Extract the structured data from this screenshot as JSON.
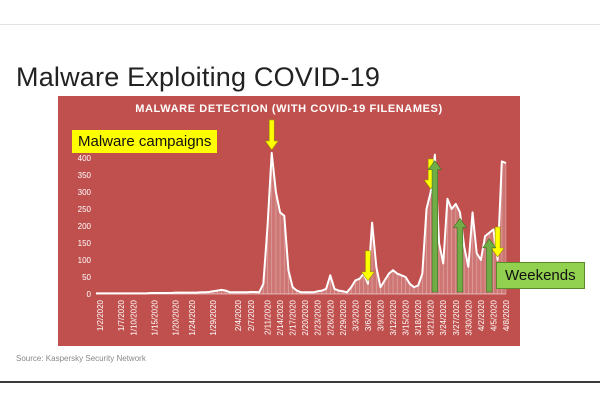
{
  "slide": {
    "title": "Malware Exploiting COVID-19",
    "source": "Source: Kaspersky Security Network"
  },
  "callouts": {
    "campaigns": "Malware campaigns",
    "weekends": "Weekends"
  },
  "colors": {
    "panel": "#c0504d",
    "line": "#ffffff",
    "campaign_arrow": "#ffff00",
    "weekend_arrow": "#70ad47",
    "campaign_callout": "#ffff00",
    "weekend_callout": "#92d050"
  },
  "chart_data": {
    "type": "area",
    "title": "MALWARE DETECTION (WITH COVID-19 FILENAMES)",
    "xlabel": "",
    "ylabel": "",
    "ylim": [
      0,
      400
    ],
    "yticks": [
      0,
      50,
      100,
      150,
      200,
      250,
      300,
      350,
      400
    ],
    "grid": false,
    "x_tick_labels": [
      "1/2/2020",
      "1/7/2020",
      "1/10/2020",
      "1/15/2020",
      "1/20/2020",
      "1/24/2020",
      "1/29/2020",
      "2/4/2020",
      "2/7/2020",
      "2/11/2020",
      "2/14/2020",
      "2/17/2020",
      "2/20/2020",
      "2/23/2020",
      "2/26/2020",
      "2/29/2020",
      "3/3/2020",
      "3/6/2020",
      "3/9/2020",
      "3/12/2020",
      "3/15/2020",
      "3/18/2020",
      "3/21/2020",
      "3/24/2020",
      "3/27/2020",
      "3/30/2020",
      "4/2/2020",
      "4/5/2020",
      "4/8/2020"
    ],
    "x": [
      "1/1/2020",
      "1/2/2020",
      "1/3/2020",
      "1/4/2020",
      "1/5/2020",
      "1/6/2020",
      "1/7/2020",
      "1/8/2020",
      "1/9/2020",
      "1/10/2020",
      "1/11/2020",
      "1/12/2020",
      "1/13/2020",
      "1/14/2020",
      "1/15/2020",
      "1/16/2020",
      "1/17/2020",
      "1/18/2020",
      "1/19/2020",
      "1/20/2020",
      "1/21/2020",
      "1/22/2020",
      "1/23/2020",
      "1/24/2020",
      "1/25/2020",
      "1/26/2020",
      "1/27/2020",
      "1/28/2020",
      "1/29/2020",
      "1/30/2020",
      "1/31/2020",
      "2/1/2020",
      "2/2/2020",
      "2/3/2020",
      "2/4/2020",
      "2/5/2020",
      "2/6/2020",
      "2/7/2020",
      "2/8/2020",
      "2/9/2020",
      "2/10/2020",
      "2/11/2020",
      "2/12/2020",
      "2/13/2020",
      "2/14/2020",
      "2/15/2020",
      "2/16/2020",
      "2/17/2020",
      "2/18/2020",
      "2/19/2020",
      "2/20/2020",
      "2/21/2020",
      "2/22/2020",
      "2/23/2020",
      "2/24/2020",
      "2/25/2020",
      "2/26/2020",
      "2/27/2020",
      "2/28/2020",
      "2/29/2020",
      "3/1/2020",
      "3/2/2020",
      "3/3/2020",
      "3/4/2020",
      "3/5/2020",
      "3/6/2020",
      "3/7/2020",
      "3/8/2020",
      "3/9/2020",
      "3/10/2020",
      "3/11/2020",
      "3/12/2020",
      "3/13/2020",
      "3/14/2020",
      "3/15/2020",
      "3/16/2020",
      "3/17/2020",
      "3/18/2020",
      "3/19/2020",
      "3/20/2020",
      "3/21/2020",
      "3/22/2020",
      "3/23/2020",
      "3/24/2020",
      "3/25/2020",
      "3/26/2020",
      "3/27/2020",
      "3/28/2020",
      "3/29/2020",
      "3/30/2020",
      "3/31/2020",
      "4/1/2020",
      "4/2/2020",
      "4/3/2020",
      "4/4/2020",
      "4/5/2020",
      "4/6/2020",
      "4/7/2020",
      "4/8/2020"
    ],
    "values": [
      2,
      2,
      2,
      2,
      2,
      2,
      2,
      2,
      2,
      2,
      2,
      2,
      2,
      3,
      3,
      3,
      3,
      3,
      3,
      4,
      4,
      4,
      4,
      4,
      4,
      5,
      5,
      6,
      8,
      10,
      12,
      10,
      5,
      5,
      5,
      5,
      5,
      6,
      6,
      5,
      30,
      200,
      415,
      300,
      240,
      230,
      70,
      20,
      10,
      5,
      5,
      5,
      5,
      8,
      10,
      15,
      55,
      15,
      10,
      8,
      5,
      20,
      40,
      45,
      60,
      30,
      210,
      80,
      20,
      40,
      60,
      70,
      60,
      55,
      50,
      30,
      20,
      25,
      60,
      250,
      300,
      410,
      150,
      90,
      280,
      250,
      265,
      240,
      140,
      80,
      240,
      120,
      100,
      170,
      180,
      190,
      100,
      390,
      385
    ],
    "campaign_arrows": [
      "2/12/2020",
      "3/6/2020",
      "3/21/2020",
      "4/6/2020"
    ],
    "weekend_arrows": [
      "3/22/2020",
      "3/28/2020",
      "4/4/2020"
    ]
  }
}
